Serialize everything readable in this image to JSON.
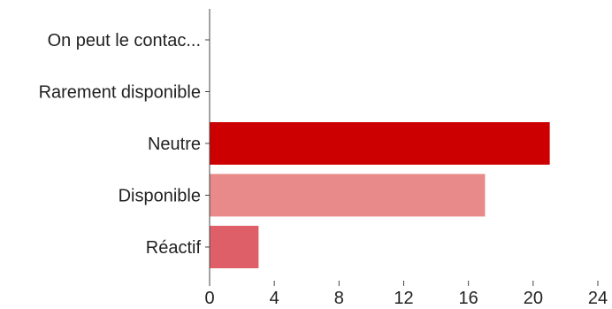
{
  "chart_data": {
    "type": "bar",
    "orientation": "horizontal",
    "categories": [
      "On peut le contac...",
      "Rarement disponible",
      "Neutre",
      "Disponible",
      "Réactif"
    ],
    "values": [
      0,
      0,
      21,
      17,
      3
    ],
    "colors": [
      "#cc0000",
      "#cc0000",
      "#cc0000",
      "#e88a8a",
      "#df5f68"
    ],
    "xlim": [
      0,
      24
    ],
    "xticks": [
      0,
      4,
      8,
      12,
      16,
      20,
      24
    ],
    "title": "",
    "xlabel": "",
    "ylabel": "",
    "grid": false,
    "legend": "none"
  }
}
